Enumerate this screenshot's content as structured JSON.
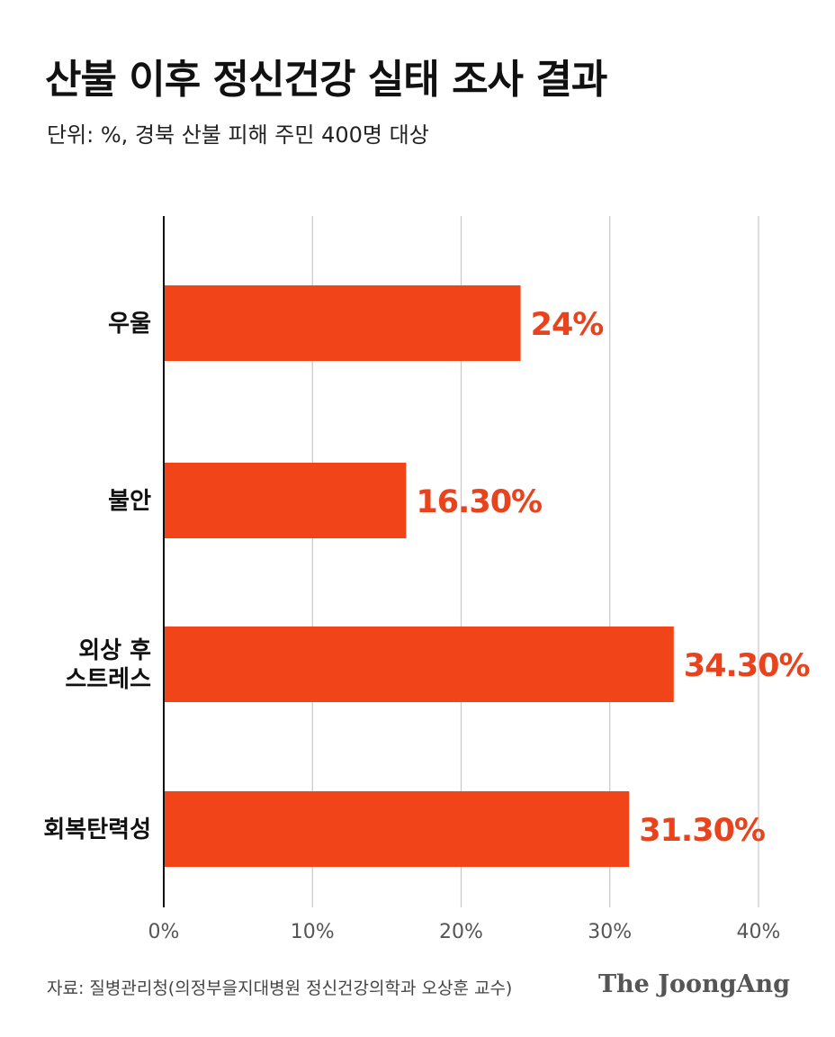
{
  "header": {
    "title": "산불 이후 정신건강 실태 조사 결과",
    "subtitle": "단위: %, 경북 산불 피해 주민 400명 대상"
  },
  "footer": {
    "source": "자료: 질병관리청(의정부을지대병원 정신건강의학과 오상훈 교수)",
    "logo": "The JoongAng"
  },
  "colors": {
    "bar": "#F24419",
    "value_label": "#E8431C",
    "grid": "#C8C8C8",
    "axis": "#111111"
  },
  "chart_data": {
    "type": "bar",
    "orientation": "horizontal",
    "title": "산불 이후 정신건강 실태 조사 결과",
    "subtitle": "단위: %, 경북 산불 피해 주민 400명 대상",
    "categories": [
      [
        "우울"
      ],
      [
        "불안"
      ],
      [
        "외상 후",
        "스트레스"
      ],
      [
        "회복탄력성"
      ]
    ],
    "values": [
      24,
      16.3,
      34.3,
      31.3
    ],
    "value_labels": [
      "24%",
      "16.30%",
      "34.30%",
      "31.30%"
    ],
    "xlim": [
      0,
      40
    ],
    "x_ticks": [
      0,
      10,
      20,
      30,
      40
    ],
    "x_tick_labels": [
      "0%",
      "10%",
      "20%",
      "30%",
      "40%"
    ],
    "grid": true,
    "legend": "none"
  }
}
